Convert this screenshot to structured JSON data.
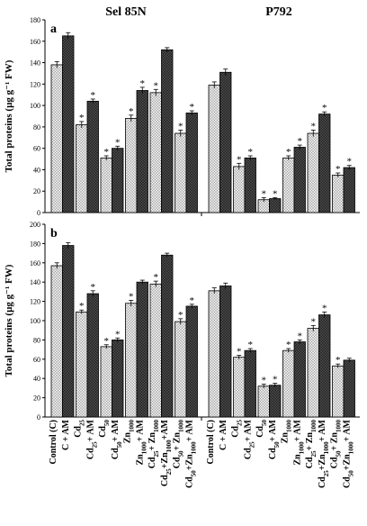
{
  "headers": {
    "left": "Sel 85N",
    "right": "P792"
  },
  "colors": {
    "light": "#e9e9e9",
    "dark": "#2e2e2e",
    "hatch": "#9a9a9a",
    "axis": "#000000"
  },
  "star_symbol": "*",
  "chart_data": [
    {
      "type": "bar",
      "panel": "a",
      "ylabel": "Total proteins (µg g⁻¹ FW)",
      "ylim": [
        0,
        180
      ],
      "yticks": [
        "0",
        "20",
        "40",
        "60",
        "80",
        "100",
        "120",
        "140",
        "160",
        "180"
      ],
      "groups": [
        {
          "name": "Sel 85N",
          "values": [
            138,
            165,
            82,
            104,
            51,
            60,
            88,
            114,
            112,
            152,
            74,
            93
          ],
          "errors": [
            3,
            3,
            3,
            2,
            2,
            2,
            3,
            3,
            3,
            2,
            3,
            2
          ],
          "stars": [
            false,
            false,
            true,
            true,
            true,
            true,
            true,
            true,
            true,
            false,
            true,
            true
          ]
        },
        {
          "name": "P792",
          "values": [
            119,
            131,
            43,
            51,
            12,
            13,
            51,
            61,
            74,
            92,
            35,
            42
          ],
          "errors": [
            3,
            3,
            3,
            2,
            2,
            1,
            2,
            2,
            3,
            2,
            2,
            2
          ],
          "stars": [
            false,
            false,
            true,
            true,
            true,
            true,
            true,
            true,
            true,
            true,
            true,
            true
          ]
        }
      ]
    },
    {
      "type": "bar",
      "panel": "b",
      "ylabel": "Total proteins (µg g⁻¹ FW)",
      "ylim": [
        0,
        200
      ],
      "yticks": [
        "0",
        "20",
        "40",
        "60",
        "80",
        "100",
        "120",
        "140",
        "160",
        "180",
        "200"
      ],
      "groups": [
        {
          "name": "Sel 85N",
          "values": [
            157,
            178,
            109,
            128,
            73,
            80,
            118,
            140,
            138,
            168,
            99,
            115
          ],
          "errors": [
            3,
            3,
            2,
            3,
            2,
            2,
            3,
            2,
            3,
            2,
            3,
            2
          ],
          "stars": [
            false,
            false,
            true,
            true,
            true,
            true,
            true,
            false,
            true,
            false,
            true,
            true
          ]
        },
        {
          "name": "P792",
          "values": [
            131,
            136,
            62,
            69,
            32,
            33,
            69,
            78,
            92,
            106,
            53,
            59
          ],
          "errors": [
            3,
            3,
            2,
            2,
            2,
            2,
            2,
            2,
            3,
            3,
            2,
            2
          ],
          "stars": [
            false,
            false,
            true,
            true,
            true,
            true,
            true,
            true,
            true,
            true,
            true,
            false
          ]
        }
      ]
    }
  ],
  "x_categories": {
    "Sel 85N": [
      [
        "Control (C)"
      ],
      [
        "C + AM"
      ],
      [
        "Cd",
        {
          "sub": "25"
        }
      ],
      [
        "Cd",
        {
          "sub": "25"
        },
        "+ AM"
      ],
      [
        "Cd",
        {
          "sub": "50"
        }
      ],
      [
        "Cd",
        {
          "sub": "50"
        },
        "+ AM"
      ],
      [
        "Zn",
        {
          "sub": "1000"
        }
      ],
      [
        "Zn",
        {
          "sub": "1000"
        },
        "+ AM"
      ],
      [
        "Cd",
        {
          "sub": "25"
        },
        "+ Zn",
        {
          "sub": "1000"
        }
      ],
      [
        "Cd",
        {
          "sub": "25"
        },
        "+Zn",
        {
          "sub": "1000"
        },
        "+AM"
      ],
      [
        "Cd",
        {
          "sub": "50"
        },
        "+ Zn",
        {
          "sub": "1000"
        }
      ],
      [
        "Cd",
        {
          "sub": "50"
        },
        "+Zn",
        {
          "sub": "1000"
        },
        "+ AM"
      ]
    ],
    "P792": [
      [
        "Control (C)"
      ],
      [
        "C + AM"
      ],
      [
        "Cd",
        {
          "sub": "25"
        }
      ],
      [
        "Cd",
        {
          "sub": "25"
        },
        "+ AM"
      ],
      [
        "Cd",
        {
          "sub": "50"
        }
      ],
      [
        "Cd",
        {
          "sub": "50"
        },
        "+ AM"
      ],
      [
        "Zn",
        {
          "sub": "1000"
        }
      ],
      [
        "Zn",
        {
          "sub": "1000"
        },
        "+ AM"
      ],
      [
        "Cd",
        {
          "sub": "25"
        },
        "+ Zn",
        {
          "sub": "1000"
        }
      ],
      [
        "Cd",
        {
          "sub": "25"
        },
        "+Zn",
        {
          "sub": "1000"
        },
        "+ AM"
      ],
      [
        "Cd",
        {
          "sub": "50"
        },
        "+ Zn",
        {
          "sub": "1000"
        }
      ],
      [
        "Cd",
        {
          "sub": "50"
        },
        "+Zn",
        {
          "sub": "1000"
        },
        "+ AM"
      ]
    ]
  }
}
